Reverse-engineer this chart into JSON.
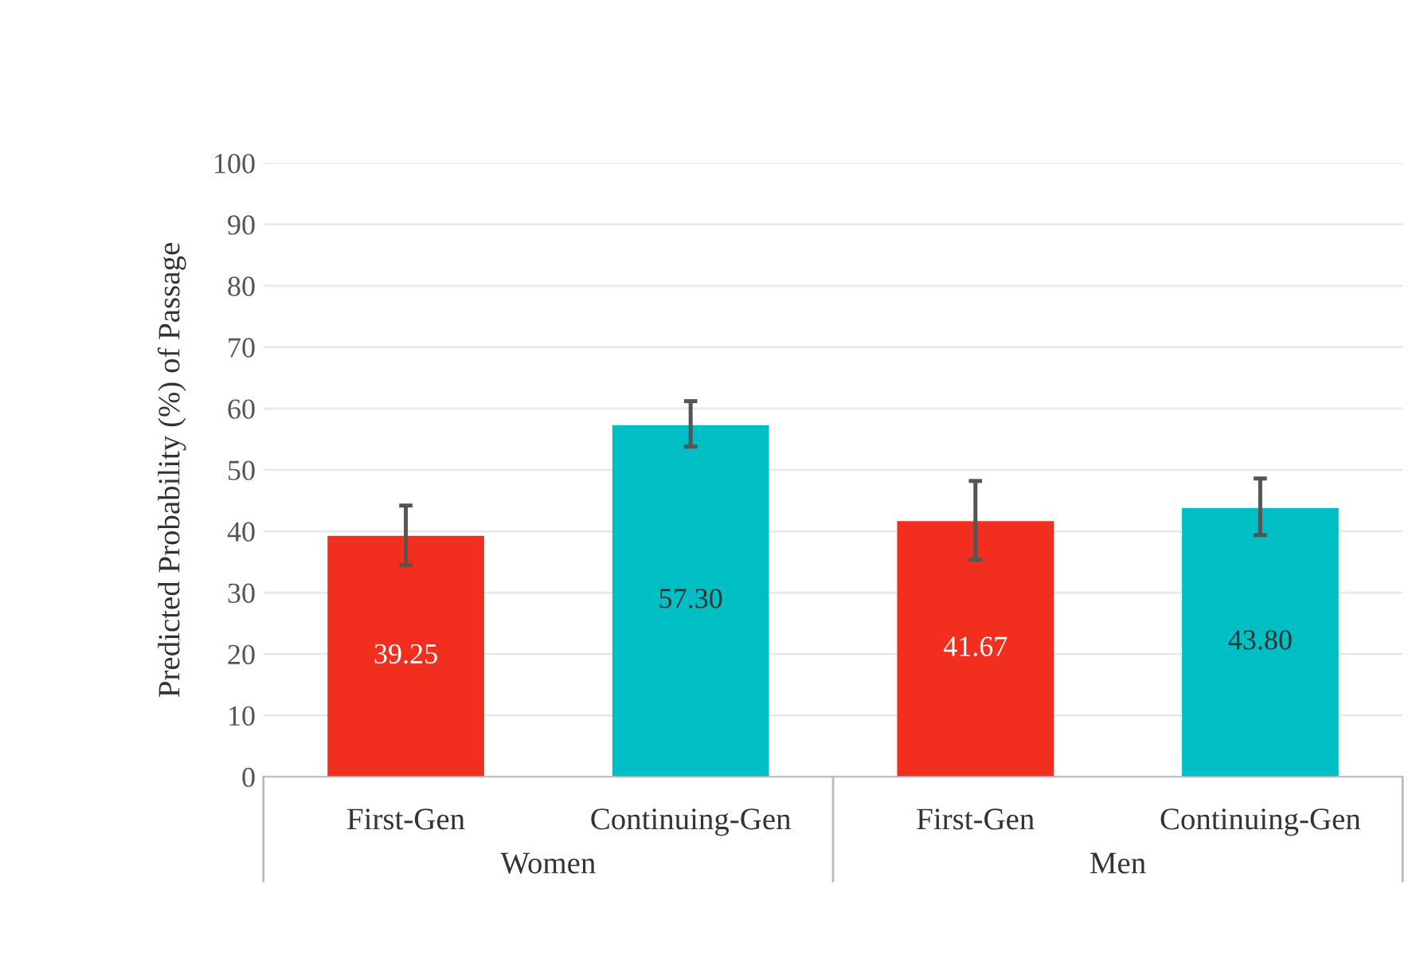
{
  "chart_data": {
    "type": "bar",
    "ylabel": "Predicted Probability (%) of Passage",
    "categories": [
      "First-Gen",
      "Continuing-Gen",
      "First-Gen",
      "Continuing-Gen"
    ],
    "values": [
      39.25,
      57.3,
      41.67,
      43.8
    ],
    "colors": [
      "#f22e1e",
      "#00bfc4",
      "#f22e1e",
      "#00bfc4"
    ],
    "errors": [
      [
        34.5,
        44.2
      ],
      [
        53.8,
        61.2
      ],
      [
        35.4,
        48.2
      ],
      [
        39.4,
        48.6
      ]
    ],
    "annotations": [
      "Women",
      "Men"
    ],
    "value_labels": [
      "39.25",
      "57.30",
      "41.67",
      "43.80"
    ],
    "ylim": [
      0,
      100
    ],
    "yticks": [
      0,
      10,
      20,
      30,
      40,
      50,
      60,
      70,
      80,
      90,
      100
    ],
    "grid": "y"
  }
}
